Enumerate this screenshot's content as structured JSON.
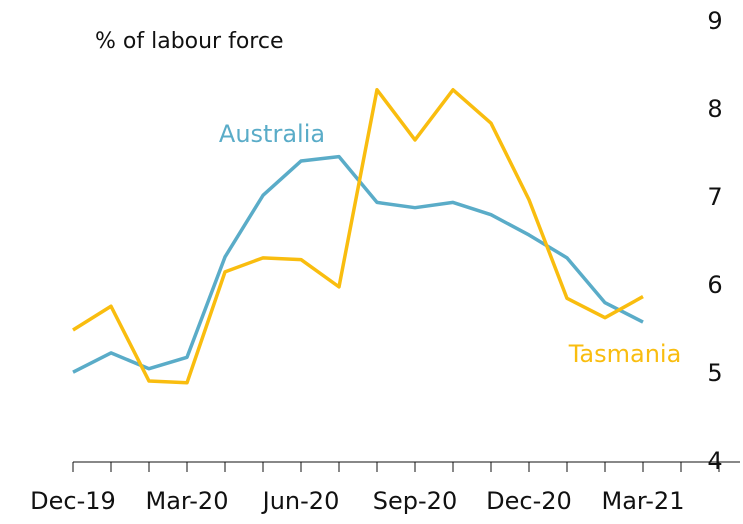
{
  "chart_data": {
    "type": "line",
    "y_label": "% of labour force",
    "categories": [
      "Dec-19",
      null,
      null,
      "Mar-20",
      null,
      null,
      "Jun-20",
      null,
      null,
      "Sep-20",
      null,
      null,
      "Dec-20",
      null,
      null,
      "Mar-21",
      null,
      null
    ],
    "series": [
      {
        "name": "Australia",
        "color": "#5aacc8",
        "values": [
          5.02,
          5.24,
          5.06,
          5.19,
          6.33,
          7.03,
          7.42,
          7.47,
          6.95,
          6.89,
          6.95,
          6.81,
          6.58,
          6.32,
          5.81,
          5.59,
          null,
          null
        ]
      },
      {
        "name": "Tasmania",
        "color": "#f9bd0f",
        "values": [
          5.5,
          5.77,
          4.92,
          4.9,
          6.16,
          6.32,
          6.3,
          5.99,
          8.23,
          7.66,
          8.23,
          7.85,
          6.98,
          5.86,
          5.64,
          5.88,
          null,
          null
        ]
      }
    ],
    "ylim": [
      4,
      9
    ],
    "yticks": [
      4,
      5,
      6,
      7,
      8,
      9
    ]
  }
}
